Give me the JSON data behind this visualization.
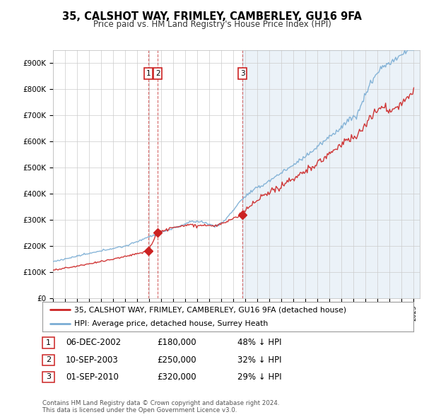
{
  "title": "35, CALSHOT WAY, FRIMLEY, CAMBERLEY, GU16 9FA",
  "subtitle": "Price paid vs. HM Land Registry's House Price Index (HPI)",
  "ylim": [
    0,
    950000
  ],
  "yticks": [
    0,
    100000,
    200000,
    300000,
    400000,
    500000,
    600000,
    700000,
    800000,
    900000
  ],
  "ytick_labels": [
    "£0",
    "£100K",
    "£200K",
    "£300K",
    "£400K",
    "£500K",
    "£600K",
    "£700K",
    "£800K",
    "£900K"
  ],
  "hpi_color": "#7aadd4",
  "price_color": "#cc2222",
  "vline_color": "#cc4444",
  "shade_color": "#ddeeff",
  "trans_years": [
    2002.92,
    2003.71,
    2010.75
  ],
  "trans_prices": [
    180000,
    250000,
    320000
  ],
  "trans_labels": [
    "1",
    "2",
    "3"
  ],
  "legend_house_label": "35, CALSHOT WAY, FRIMLEY, CAMBERLEY, GU16 9FA (detached house)",
  "legend_hpi_label": "HPI: Average price, detached house, Surrey Heath",
  "table_rows": [
    {
      "num": "1",
      "date": "06-DEC-2002",
      "price": "£180,000",
      "hpi": "48% ↓ HPI"
    },
    {
      "num": "2",
      "date": "10-SEP-2003",
      "price": "£250,000",
      "hpi": "32% ↓ HPI"
    },
    {
      "num": "3",
      "date": "01-SEP-2010",
      "price": "£320,000",
      "hpi": "29% ↓ HPI"
    }
  ],
  "footnote": "Contains HM Land Registry data © Crown copyright and database right 2024.\nThis data is licensed under the Open Government Licence v3.0.",
  "background_color": "#ffffff",
  "grid_color": "#cccccc"
}
